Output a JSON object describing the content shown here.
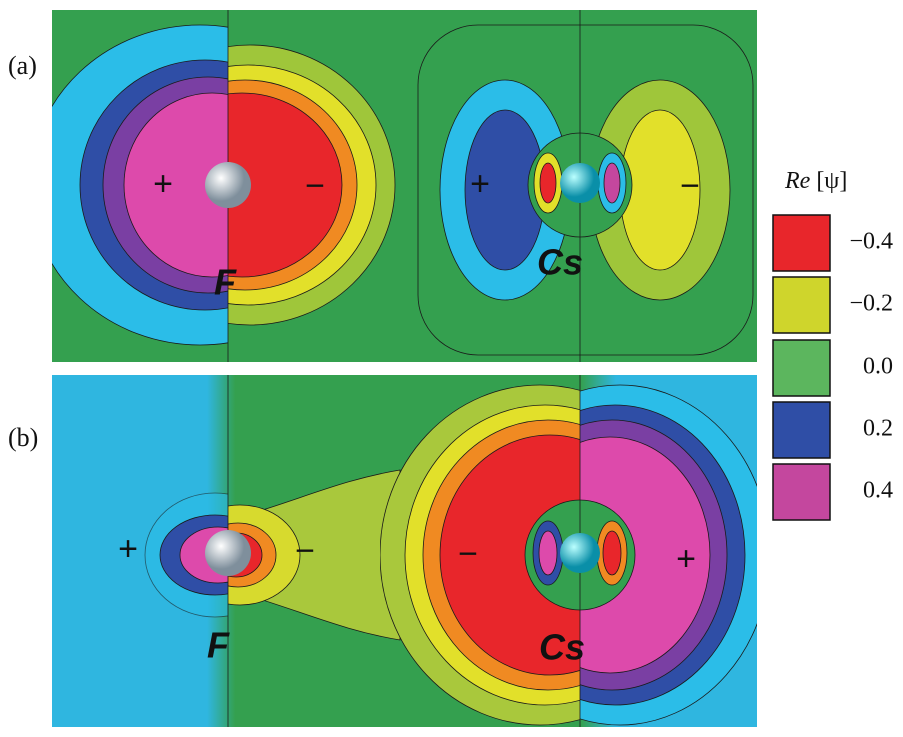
{
  "panels": [
    {
      "label": "(a)",
      "signs": [
        "+",
        "−",
        "+",
        "−"
      ],
      "atoms": [
        "F",
        "Cs"
      ]
    },
    {
      "label": "(b)",
      "signs": [
        "+",
        "−",
        "−",
        "+"
      ],
      "atoms": [
        "F",
        "Cs"
      ]
    }
  ],
  "legend": {
    "title_italic": "Re",
    "title_rest": "[ψ]",
    "items": [
      {
        "label": "−0.4",
        "color": "#e8262b"
      },
      {
        "label": "−0.2",
        "color": "#cfd52c"
      },
      {
        "label": "0.0",
        "color": "#5cb65e"
      },
      {
        "label": "0.2",
        "color": "#2f4ea6"
      },
      {
        "label": "0.4",
        "color": "#c4479e"
      }
    ]
  }
}
